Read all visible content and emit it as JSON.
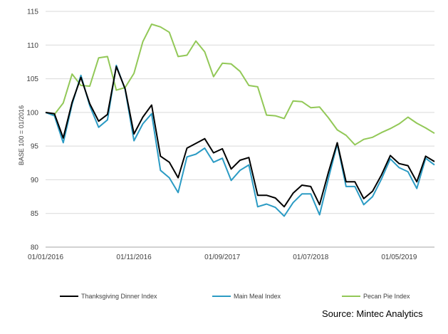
{
  "chart_data": {
    "type": "line",
    "ylabel": "BASE 100 = 01/2016",
    "xlabel": "",
    "ylim": [
      80,
      115
    ],
    "yticks": [
      80,
      85,
      90,
      95,
      100,
      105,
      110,
      115
    ],
    "x_tick_labels": [
      "01/01/2016",
      "01/11/2016",
      "01/09/2017",
      "01/07/2018",
      "01/05/2019"
    ],
    "x_tick_index": [
      0,
      10,
      20,
      30,
      40
    ],
    "grid": "horizontal",
    "legend_position": "bottom",
    "series": [
      {
        "name": "Thanksgiving Dinner Index",
        "color": "#000000",
        "values": [
          100,
          99.8,
          96.2,
          101.5,
          105.2,
          101.3,
          98.7,
          99.7,
          106.8,
          103.5,
          96.8,
          99.3,
          101.1,
          93.5,
          92.6,
          90.3,
          94.7,
          95.4,
          96.1,
          94.0,
          94.6,
          91.6,
          92.9,
          93.3,
          87.7,
          87.7,
          87.3,
          86.0,
          88.0,
          89.2,
          89.0,
          86.3,
          91.1,
          95.5,
          89.7,
          89.7,
          87.2,
          88.3,
          90.7,
          93.6,
          92.4,
          92.1,
          89.7,
          93.5,
          92.7
        ]
      },
      {
        "name": "Main Meal Index",
        "color": "#2b9bc4",
        "values": [
          100,
          99.5,
          95.5,
          101.2,
          105.5,
          101.0,
          97.8,
          98.9,
          107.0,
          103.4,
          95.8,
          98.3,
          99.8,
          91.4,
          90.3,
          88.1,
          93.4,
          93.8,
          94.7,
          92.6,
          93.2,
          89.9,
          91.4,
          92.2,
          86.0,
          86.4,
          85.9,
          84.6,
          86.6,
          87.9,
          87.9,
          84.8,
          90.2,
          95.3,
          89.0,
          89.0,
          86.3,
          87.5,
          90.1,
          93.1,
          91.8,
          91.2,
          88.7,
          93.2,
          92.2
        ]
      },
      {
        "name": "Pecan Pie Index",
        "color": "#92c857",
        "values": [
          100,
          99.7,
          101.4,
          105.7,
          104.0,
          103.9,
          108.1,
          108.3,
          103.3,
          103.7,
          105.8,
          110.5,
          113.1,
          112.7,
          111.9,
          108.3,
          108.5,
          110.6,
          109.0,
          105.3,
          107.3,
          107.2,
          106.1,
          104.0,
          103.8,
          99.6,
          99.5,
          99.1,
          101.7,
          101.6,
          100.7,
          100.8,
          99.2,
          97.4,
          96.6,
          95.2,
          96.0,
          96.3,
          97.0,
          97.6,
          98.3,
          99.3,
          98.4,
          97.7,
          96.9
        ]
      }
    ]
  },
  "source_text": "Source: Mintec Analytics"
}
